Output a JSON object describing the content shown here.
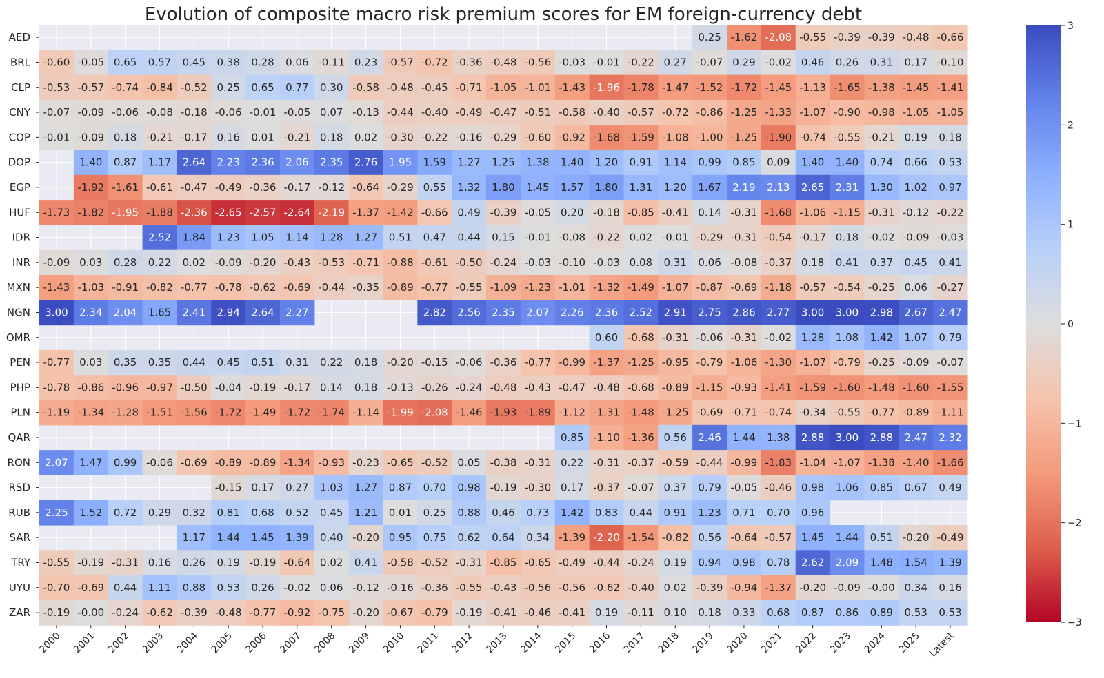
{
  "chart_data": {
    "type": "heatmap",
    "title": "Evolution of composite macro risk premium scores for EM foreign-currency debt",
    "xlabel": "",
    "ylabel": "",
    "colormap": "coolwarm_r",
    "vmin": -3,
    "vmax": 3,
    "colorbar_ticks": [
      3,
      2,
      1,
      0,
      -1,
      -2,
      -3
    ],
    "colorbar_tick_labels": [
      "3",
      "2",
      "1",
      "0",
      "−1",
      "−2",
      "−3"
    ],
    "missing_color": "#eaeaf2",
    "x": [
      "2000",
      "2001",
      "2002",
      "2003",
      "2004",
      "2005",
      "2006",
      "2007",
      "2008",
      "2009",
      "2010",
      "2011",
      "2012",
      "2013",
      "2014",
      "2015",
      "2016",
      "2017",
      "2018",
      "2019",
      "2020",
      "2021",
      "2022",
      "2023",
      "2024",
      "2025",
      "Latest"
    ],
    "y": [
      "AED",
      "BRL",
      "CLP",
      "CNY",
      "COP",
      "DOP",
      "EGP",
      "HUF",
      "IDR",
      "INR",
      "MXN",
      "NGN",
      "OMR",
      "PEN",
      "PHP",
      "PLN",
      "QAR",
      "RON",
      "RSD",
      "RUB",
      "SAR",
      "TRY",
      "UYU",
      "ZAR"
    ],
    "values": [
      [
        null,
        null,
        null,
        null,
        null,
        null,
        null,
        null,
        null,
        null,
        null,
        null,
        null,
        null,
        null,
        null,
        null,
        null,
        null,
        "0.25",
        "-1.62",
        "-2.08",
        "-0.55",
        "-0.39",
        "-0.39",
        "-0.48",
        "-0.66"
      ],
      [
        "-0.60",
        "-0.05",
        "0.65",
        "0.57",
        "0.45",
        "0.38",
        "0.28",
        "0.06",
        "-0.11",
        "0.23",
        "-0.57",
        "-0.72",
        "-0.36",
        "-0.48",
        "-0.56",
        "-0.03",
        "-0.01",
        "-0.22",
        "0.27",
        "-0.07",
        "0.29",
        "-0.02",
        "0.46",
        "0.26",
        "0.31",
        "0.17",
        "-0.10"
      ],
      [
        "-0.53",
        "-0.57",
        "-0.74",
        "-0.84",
        "-0.52",
        "0.25",
        "0.65",
        "0.77",
        "0.30",
        "-0.58",
        "-0.48",
        "-0.45",
        "-0.71",
        "-1.05",
        "-1.01",
        "-1.43",
        "-1.96",
        "-1.78",
        "-1.47",
        "-1.52",
        "-1.72",
        "-1.45",
        "-1.13",
        "-1.65",
        "-1.38",
        "-1.45",
        "-1.41"
      ],
      [
        "-0.07",
        "-0.09",
        "-0.06",
        "-0.08",
        "-0.18",
        "-0.06",
        "-0.01",
        "-0.05",
        "0.07",
        "-0.13",
        "-0.44",
        "-0.40",
        "-0.49",
        "-0.47",
        "-0.51",
        "-0.58",
        "-0.40",
        "-0.57",
        "-0.72",
        "-0.86",
        "-1.25",
        "-1.33",
        "-1.07",
        "-0.90",
        "-0.98",
        "-1.05",
        "-1.05"
      ],
      [
        "-0.01",
        "-0.09",
        "0.18",
        "-0.21",
        "-0.17",
        "0.16",
        "0.01",
        "-0.21",
        "0.18",
        "0.02",
        "-0.30",
        "-0.22",
        "-0.16",
        "-0.29",
        "-0.60",
        "-0.92",
        "-1.68",
        "-1.59",
        "-1.08",
        "-1.00",
        "-1.25",
        "-1.90",
        "-0.74",
        "-0.55",
        "-0.21",
        "0.19",
        "0.18"
      ],
      [
        null,
        "1.40",
        "0.87",
        "1.17",
        "2.64",
        "2.23",
        "2.36",
        "2.06",
        "2.35",
        "2.76",
        "1.95",
        "1.59",
        "1.27",
        "1.25",
        "1.38",
        "1.40",
        "1.20",
        "0.91",
        "1.14",
        "0.99",
        "0.85",
        "0.09",
        "1.40",
        "1.40",
        "0.74",
        "0.66",
        "0.53"
      ],
      [
        null,
        "-1.92",
        "-1.61",
        "-0.61",
        "-0.47",
        "-0.49",
        "-0.36",
        "-0.17",
        "-0.12",
        "-0.64",
        "-0.29",
        "0.55",
        "1.32",
        "1.80",
        "1.45",
        "1.57",
        "1.80",
        "1.31",
        "1.20",
        "1.67",
        "2.19",
        "2.13",
        "2.65",
        "2.31",
        "1.30",
        "1.02",
        "0.97"
      ],
      [
        "-1.73",
        "-1.82",
        "-1.95",
        "-1.88",
        "-2.36",
        "-2.65",
        "-2.57",
        "-2.64",
        "-2.19",
        "-1.37",
        "-1.42",
        "-0.66",
        "0.49",
        "-0.39",
        "-0.05",
        "0.20",
        "-0.18",
        "-0.85",
        "-0.41",
        "0.14",
        "-0.31",
        "-1.68",
        "-1.06",
        "-1.15",
        "-0.31",
        "-0.12",
        "-0.22"
      ],
      [
        null,
        null,
        null,
        "2.52",
        "1.84",
        "1.23",
        "1.05",
        "1.14",
        "1.28",
        "1.27",
        "0.51",
        "0.47",
        "0.44",
        "0.15",
        "-0.01",
        "-0.08",
        "-0.22",
        "0.02",
        "-0.01",
        "-0.29",
        "-0.31",
        "-0.54",
        "-0.17",
        "0.18",
        "-0.02",
        "-0.09",
        "-0.03"
      ],
      [
        "-0.09",
        "0.03",
        "0.28",
        "0.22",
        "0.02",
        "-0.09",
        "-0.20",
        "-0.43",
        "-0.53",
        "-0.71",
        "-0.88",
        "-0.61",
        "-0.50",
        "-0.24",
        "-0.03",
        "-0.10",
        "-0.03",
        "0.08",
        "0.31",
        "0.06",
        "-0.08",
        "-0.37",
        "0.18",
        "0.41",
        "0.37",
        "0.45",
        "0.41"
      ],
      [
        "-1.43",
        "-1.03",
        "-0.91",
        "-0.82",
        "-0.77",
        "-0.78",
        "-0.62",
        "-0.69",
        "-0.44",
        "-0.35",
        "-0.89",
        "-0.77",
        "-0.55",
        "-1.09",
        "-1.23",
        "-1.01",
        "-1.32",
        "-1.49",
        "-1.07",
        "-0.87",
        "-0.69",
        "-1.18",
        "-0.57",
        "-0.54",
        "-0.25",
        "0.06",
        "-0.27"
      ],
      [
        "3.00",
        "2.34",
        "2.04",
        "1.65",
        "2.41",
        "2.94",
        "2.64",
        "2.27",
        null,
        null,
        null,
        "2.82",
        "2.56",
        "2.35",
        "2.07",
        "2.26",
        "2.36",
        "2.52",
        "2.91",
        "2.75",
        "2.86",
        "2.77",
        "3.00",
        "3.00",
        "2.98",
        "2.67",
        "2.47"
      ],
      [
        null,
        null,
        null,
        null,
        null,
        null,
        null,
        null,
        null,
        null,
        null,
        null,
        null,
        null,
        null,
        null,
        "0.60",
        "-0.68",
        "-0.31",
        "-0.06",
        "-0.31",
        "-0.02",
        "1.28",
        "1.08",
        "1.42",
        "1.07",
        "0.79"
      ],
      [
        "-0.77",
        "0.03",
        "0.35",
        "0.35",
        "0.44",
        "0.45",
        "0.51",
        "0.31",
        "0.22",
        "0.18",
        "-0.20",
        "-0.15",
        "-0.06",
        "-0.36",
        "-0.77",
        "-0.99",
        "-1.37",
        "-1.25",
        "-0.95",
        "-0.79",
        "-1.06",
        "-1.30",
        "-1.07",
        "-0.79",
        "-0.25",
        "-0.09",
        "-0.07"
      ],
      [
        "-0.78",
        "-0.86",
        "-0.96",
        "-0.97",
        "-0.50",
        "-0.04",
        "-0.19",
        "-0.17",
        "0.14",
        "0.18",
        "-0.13",
        "-0.26",
        "-0.24",
        "-0.48",
        "-0.43",
        "-0.47",
        "-0.48",
        "-0.68",
        "-0.89",
        "-1.15",
        "-0.93",
        "-1.41",
        "-1.59",
        "-1.60",
        "-1.48",
        "-1.60",
        "-1.55"
      ],
      [
        "-1.19",
        "-1.34",
        "-1.28",
        "-1.51",
        "-1.56",
        "-1.72",
        "-1.49",
        "-1.72",
        "-1.74",
        "-1.14",
        "-1.99",
        "-2.08",
        "-1.46",
        "-1.93",
        "-1.89",
        "-1.12",
        "-1.31",
        "-1.48",
        "-1.25",
        "-0.69",
        "-0.71",
        "-0.74",
        "-0.34",
        "-0.55",
        "-0.77",
        "-0.89",
        "-1.11"
      ],
      [
        null,
        null,
        null,
        null,
        null,
        null,
        null,
        null,
        null,
        null,
        null,
        null,
        null,
        null,
        null,
        "0.85",
        "-1.10",
        "-1.36",
        "0.56",
        "2.46",
        "1.44",
        "1.38",
        "2.88",
        "3.00",
        "2.88",
        "2.47",
        "2.32"
      ],
      [
        "2.07",
        "1.47",
        "0.99",
        "-0.06",
        "-0.69",
        "-0.89",
        "-0.89",
        "-1.34",
        "-0.93",
        "-0.23",
        "-0.65",
        "-0.52",
        "0.05",
        "-0.38",
        "-0.31",
        "0.22",
        "-0.31",
        "-0.37",
        "-0.59",
        "-0.44",
        "-0.99",
        "-1.83",
        "-1.04",
        "-1.07",
        "-1.38",
        "-1.40",
        "-1.66"
      ],
      [
        null,
        null,
        null,
        null,
        null,
        "-0.15",
        "0.17",
        "0.27",
        "1.03",
        "1.27",
        "0.87",
        "0.70",
        "0.98",
        "-0.19",
        "-0.30",
        "0.17",
        "-0.37",
        "-0.07",
        "0.37",
        "0.79",
        "-0.05",
        "-0.46",
        "0.98",
        "1.06",
        "0.85",
        "0.67",
        "0.49"
      ],
      [
        "2.25",
        "1.52",
        "0.72",
        "0.29",
        "0.32",
        "0.81",
        "0.68",
        "0.52",
        "0.45",
        "1.21",
        "0.01",
        "0.25",
        "0.88",
        "0.46",
        "0.73",
        "1.42",
        "0.83",
        "0.44",
        "0.91",
        "1.23",
        "0.71",
        "0.70",
        "0.96",
        null,
        null,
        null,
        null
      ],
      [
        null,
        null,
        null,
        null,
        "1.17",
        "1.44",
        "1.45",
        "1.39",
        "0.40",
        "-0.20",
        "0.95",
        "0.75",
        "0.62",
        "0.64",
        "0.34",
        "-1.39",
        "-2.20",
        "-1.54",
        "-0.82",
        "0.56",
        "-0.64",
        "-0.57",
        "1.45",
        "1.44",
        "0.51",
        "-0.20",
        "-0.49"
      ],
      [
        "-0.55",
        "-0.19",
        "-0.31",
        "0.16",
        "0.26",
        "0.19",
        "-0.19",
        "-0.64",
        "0.02",
        "0.41",
        "-0.58",
        "-0.52",
        "-0.31",
        "-0.85",
        "-0.65",
        "-0.49",
        "-0.44",
        "-0.24",
        "0.19",
        "0.94",
        "0.98",
        "0.78",
        "2.62",
        "2.09",
        "1.48",
        "1.54",
        "1.39"
      ],
      [
        "-0.70",
        "-0.69",
        "0.44",
        "1.11",
        "0.88",
        "0.53",
        "0.26",
        "-0.02",
        "0.06",
        "-0.12",
        "-0.16",
        "-0.36",
        "-0.55",
        "-0.43",
        "-0.56",
        "-0.56",
        "-0.62",
        "-0.40",
        "0.02",
        "-0.39",
        "-0.94",
        "-1.37",
        "-0.20",
        "-0.09",
        "-0.00",
        "0.34",
        "0.16"
      ],
      [
        "-0.19",
        "-0.00",
        "-0.24",
        "-0.62",
        "-0.39",
        "-0.48",
        "-0.77",
        "-0.92",
        "-0.75",
        "-0.20",
        "-0.67",
        "-0.79",
        "-0.19",
        "-0.41",
        "-0.46",
        "-0.41",
        "0.19",
        "-0.11",
        "0.10",
        "0.18",
        "0.33",
        "0.68",
        "0.87",
        "0.86",
        "0.89",
        "0.53",
        "0.53"
      ]
    ]
  }
}
